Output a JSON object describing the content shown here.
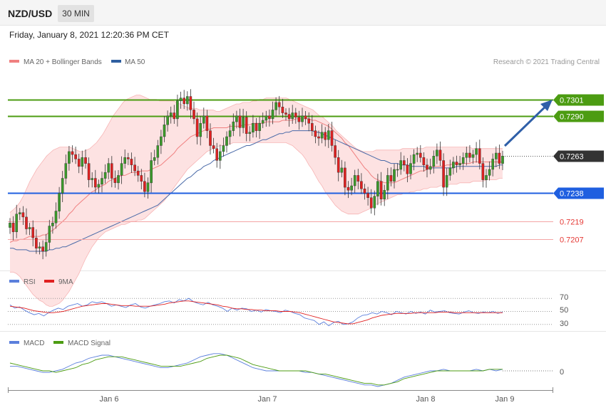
{
  "header": {
    "symbol": "NZD/USD",
    "timeframe": "30 MIN",
    "datetime": "Friday, January 8, 2021 12:20:36 PM CET"
  },
  "chart_data": [
    {
      "type": "candlestick",
      "legend": [
        {
          "name": "MA 20 + Bollinger Bands",
          "color": "#f08080"
        },
        {
          "name": "MA 50",
          "color": "#2f5fa0"
        }
      ],
      "credit": "Research © 2021 Trading Central",
      "ylim": [
        0.7188,
        0.732
      ],
      "x_ticks": [
        "Jan 6",
        "Jan 7",
        "Jan 8",
        "Jan 9"
      ],
      "price_lines": [
        {
          "value": 0.7301,
          "label": "0.7301",
          "color": "#4c9c12"
        },
        {
          "value": 0.729,
          "label": "0.7290",
          "color": "#4c9c12"
        },
        {
          "value": 0.7263,
          "label": "0.7263",
          "color": "#333333"
        },
        {
          "value": 0.7238,
          "label": "0.7238",
          "color": "#1f5fe0"
        },
        {
          "value": 0.7219,
          "label": "0.7219",
          "color": "#e53935"
        },
        {
          "value": 0.7207,
          "label": "0.7207",
          "color": "#e53935"
        }
      ],
      "close": [
        0.7218,
        0.7212,
        0.7224,
        0.7225,
        0.7222,
        0.7214,
        0.7215,
        0.7208,
        0.7201,
        0.7202,
        0.7199,
        0.7205,
        0.7216,
        0.7218,
        0.7226,
        0.7238,
        0.7248,
        0.7258,
        0.7266,
        0.7264,
        0.7261,
        0.7256,
        0.7262,
        0.7258,
        0.7247,
        0.7248,
        0.7242,
        0.7244,
        0.7248,
        0.7252,
        0.7258,
        0.7248,
        0.7245,
        0.725,
        0.7258,
        0.7262,
        0.7261,
        0.7257,
        0.7253,
        0.725,
        0.7246,
        0.7239,
        0.7245,
        0.726,
        0.7262,
        0.727,
        0.7276,
        0.7284,
        0.729,
        0.7292,
        0.7288,
        0.73,
        0.7302,
        0.7298,
        0.7303,
        0.7294,
        0.7288,
        0.7276,
        0.7285,
        0.729,
        0.728,
        0.727,
        0.7268,
        0.726,
        0.7266,
        0.727,
        0.7276,
        0.728,
        0.7286,
        0.729,
        0.7282,
        0.7289,
        0.7278,
        0.7279,
        0.7285,
        0.728,
        0.7285,
        0.7287,
        0.729,
        0.7288,
        0.7294,
        0.7299,
        0.7296,
        0.7292,
        0.7291,
        0.7288,
        0.7292,
        0.7289,
        0.7286,
        0.729,
        0.7288,
        0.7285,
        0.728,
        0.7276,
        0.7275,
        0.7279,
        0.7274,
        0.728,
        0.727,
        0.7262,
        0.7252,
        0.7255,
        0.7242,
        0.724,
        0.7243,
        0.725,
        0.7246,
        0.7241,
        0.7238,
        0.7235,
        0.7228,
        0.7236,
        0.7246,
        0.7234,
        0.724,
        0.725,
        0.7246,
        0.7254,
        0.7254,
        0.726,
        0.7257,
        0.7251,
        0.7258,
        0.7264,
        0.7265,
        0.7262,
        0.7257,
        0.7254,
        0.7256,
        0.7263,
        0.7267,
        0.726,
        0.7242,
        0.725,
        0.7255,
        0.7259,
        0.7257,
        0.7258,
        0.7262,
        0.7265,
        0.7262,
        0.7264,
        0.7268,
        0.7258,
        0.7247,
        0.725,
        0.7254,
        0.7261,
        0.7265,
        0.7258,
        0.7263
      ],
      "ma20": [
        0.7205,
        0.7206,
        0.7206,
        0.7207,
        0.7207,
        0.7208,
        0.7209,
        0.7209,
        0.7209,
        0.7209,
        0.721,
        0.721,
        0.7212,
        0.7213,
        0.7215,
        0.7217,
        0.7219,
        0.7221,
        0.7224,
        0.7226,
        0.7229,
        0.7231,
        0.7233,
        0.7235,
        0.7237,
        0.7239,
        0.724,
        0.7242,
        0.7243,
        0.7244,
        0.7246,
        0.7247,
        0.7248,
        0.7249,
        0.725,
        0.725,
        0.7251,
        0.7252,
        0.7252,
        0.7252,
        0.7253,
        0.7253,
        0.7253,
        0.7254,
        0.7255,
        0.7256,
        0.7257,
        0.7259,
        0.7261,
        0.7263,
        0.7265,
        0.7268,
        0.727,
        0.7272,
        0.7274,
        0.7276,
        0.7277,
        0.7278,
        0.7279,
        0.728,
        0.7281,
        0.7281,
        0.7282,
        0.7282,
        0.7282,
        0.7282,
        0.7282,
        0.7283,
        0.7283,
        0.7283,
        0.7283,
        0.7284,
        0.7284,
        0.7284,
        0.7285,
        0.7285,
        0.7285,
        0.7285,
        0.7286,
        0.7286,
        0.7286,
        0.7286,
        0.7286,
        0.7287,
        0.7287,
        0.7287,
        0.7287,
        0.7288,
        0.7288,
        0.7288,
        0.7288,
        0.7288,
        0.7287,
        0.7287,
        0.7286,
        0.7285,
        0.7284,
        0.7283,
        0.7281,
        0.7279,
        0.7277,
        0.7275,
        0.7272,
        0.727,
        0.7267,
        0.7264,
        0.7261,
        0.7258,
        0.7255,
        0.7253,
        0.725,
        0.7248,
        0.7247,
        0.7246,
        0.7245,
        0.7245,
        0.7245,
        0.7245,
        0.7246,
        0.7247,
        0.7248,
        0.7249,
        0.725,
        0.7251,
        0.7252,
        0.7253,
        0.7253,
        0.7254,
        0.7255,
        0.7256,
        0.7256,
        0.7256,
        0.7256,
        0.7257,
        0.7257,
        0.7258,
        0.7258,
        0.7258,
        0.7258,
        0.7258,
        0.7258,
        0.7259,
        0.7259,
        0.7259,
        0.7259,
        0.7259,
        0.7259,
        0.7259,
        0.7259,
        0.7259,
        0.7259
      ],
      "bb_upper": [
        0.7225,
        0.7227,
        0.7229,
        0.7232,
        0.7236,
        0.7241,
        0.7246,
        0.725,
        0.7254,
        0.7257,
        0.726,
        0.7263,
        0.7265,
        0.7267,
        0.7268,
        0.7269,
        0.7269,
        0.7269,
        0.7269,
        0.7268,
        0.7267,
        0.7266,
        0.7266,
        0.7267,
        0.7268,
        0.727,
        0.7272,
        0.7275,
        0.7278,
        0.7282,
        0.7286,
        0.729,
        0.7293,
        0.7296,
        0.7299,
        0.7301,
        0.7302,
        0.7303,
        0.7304,
        0.7304,
        0.7303,
        0.7302,
        0.7301,
        0.7301,
        0.7301,
        0.73,
        0.73,
        0.73,
        0.73,
        0.73,
        0.7299,
        0.7298,
        0.7297,
        0.7296,
        0.7295,
        0.7295,
        0.7295,
        0.7294,
        0.7294,
        0.7294,
        0.7294,
        0.7294,
        0.7293,
        0.7293,
        0.7294,
        0.7295,
        0.7296,
        0.7297,
        0.7298,
        0.7298,
        0.7299,
        0.7299,
        0.7299,
        0.73,
        0.73,
        0.7301,
        0.7301,
        0.7302,
        0.7302,
        0.7302,
        0.7302,
        0.7302,
        0.7302,
        0.7302,
        0.7301,
        0.73,
        0.7299,
        0.7298,
        0.7297,
        0.7296,
        0.7295,
        0.7294,
        0.7292,
        0.729,
        0.7289,
        0.7287,
        0.7285,
        0.7283,
        0.728,
        0.7278,
        0.7276,
        0.7274,
        0.7272,
        0.727,
        0.7268,
        0.7267,
        0.7266,
        0.7266,
        0.7266,
        0.7266,
        0.7267,
        0.7267,
        0.7267,
        0.7267,
        0.7267,
        0.7267,
        0.7267,
        0.7267,
        0.7268,
        0.7268,
        0.7268,
        0.7268,
        0.7268,
        0.7268,
        0.7268,
        0.7269,
        0.7269,
        0.7269,
        0.7269,
        0.7269,
        0.7269,
        0.7269,
        0.7269,
        0.7269,
        0.7269,
        0.7269,
        0.7269,
        0.7269,
        0.7269,
        0.7268,
        0.7268,
        0.7268,
        0.7268,
        0.7268,
        0.7268,
        0.7268,
        0.7268,
        0.7268,
        0.7268
      ],
      "bb_lower": [
        0.7185,
        0.7185,
        0.7184,
        0.7182,
        0.7179,
        0.7176,
        0.7173,
        0.717,
        0.7168,
        0.7166,
        0.7165,
        0.7163,
        0.7162,
        0.7162,
        0.7163,
        0.7164,
        0.7166,
        0.7169,
        0.7172,
        0.7176,
        0.718,
        0.7184,
        0.7189,
        0.7194,
        0.7198,
        0.7202,
        0.7205,
        0.7208,
        0.721,
        0.7212,
        0.7213,
        0.7214,
        0.7215,
        0.7216,
        0.7217,
        0.7217,
        0.7218,
        0.7219,
        0.7219,
        0.722,
        0.722,
        0.7221,
        0.7223,
        0.7225,
        0.7227,
        0.7229,
        0.7231,
        0.7233,
        0.7236,
        0.7239,
        0.7242,
        0.7245,
        0.7248,
        0.7251,
        0.7254,
        0.7256,
        0.7258,
        0.726,
        0.7262,
        0.7264,
        0.7266,
        0.7267,
        0.7268,
        0.7269,
        0.727,
        0.727,
        0.7271,
        0.7271,
        0.7272,
        0.7272,
        0.7272,
        0.7272,
        0.7272,
        0.7272,
        0.7272,
        0.7272,
        0.7272,
        0.7272,
        0.7272,
        0.7272,
        0.7272,
        0.7272,
        0.7272,
        0.7272,
        0.7272,
        0.7271,
        0.727,
        0.7268,
        0.7266,
        0.7264,
        0.7261,
        0.7257,
        0.7254,
        0.725,
        0.7246,
        0.7243,
        0.7239,
        0.7236,
        0.7233,
        0.723,
        0.7228,
        0.7226,
        0.7225,
        0.7224,
        0.7224,
        0.7224,
        0.7224,
        0.7225,
        0.7226,
        0.7227,
        0.7228,
        0.723,
        0.7231,
        0.7232,
        0.7233,
        0.7234,
        0.7235,
        0.7236,
        0.7237,
        0.7237,
        0.7238,
        0.7238,
        0.7239,
        0.7239,
        0.724,
        0.724,
        0.7241,
        0.7241,
        0.7242,
        0.7242,
        0.7242,
        0.7243,
        0.7243,
        0.7243,
        0.7244,
        0.7244,
        0.7244,
        0.7245,
        0.7245,
        0.7245,
        0.7245,
        0.7246,
        0.7246,
        0.7246,
        0.7246,
        0.7247,
        0.7247,
        0.7247,
        0.7247,
        0.7248,
        0.7248
      ],
      "ma50": [
        0.7201,
        0.7201,
        0.72,
        0.72,
        0.72,
        0.72,
        0.7199,
        0.7199,
        0.7199,
        0.7199,
        0.7199,
        0.7199,
        0.72,
        0.72,
        0.7201,
        0.7201,
        0.7202,
        0.7202,
        0.7203,
        0.7204,
        0.7205,
        0.7206,
        0.7207,
        0.7208,
        0.7209,
        0.721,
        0.7211,
        0.7212,
        0.7213,
        0.7214,
        0.7215,
        0.7216,
        0.7217,
        0.7218,
        0.7219,
        0.722,
        0.7221,
        0.7222,
        0.7223,
        0.7224,
        0.7225,
        0.7226,
        0.7227,
        0.7228,
        0.7229,
        0.723,
        0.7232,
        0.7234,
        0.7236,
        0.7238,
        0.724,
        0.7242,
        0.7244,
        0.7246,
        0.7248,
        0.7249,
        0.7251,
        0.7253,
        0.7254,
        0.7256,
        0.7257,
        0.7258,
        0.726,
        0.7261,
        0.7262,
        0.7263,
        0.7264,
        0.7265,
        0.7266,
        0.7267,
        0.7268,
        0.7269,
        0.727,
        0.727,
        0.7271,
        0.7272,
        0.7273,
        0.7274,
        0.7274,
        0.7275,
        0.7276,
        0.7277,
        0.7278,
        0.7278,
        0.7279,
        0.7279,
        0.728,
        0.728,
        0.728,
        0.728,
        0.728,
        0.728,
        0.728,
        0.7279,
        0.7279,
        0.7278,
        0.7277,
        0.7276,
        0.7275,
        0.7274,
        0.7273,
        0.7272,
        0.7271,
        0.727,
        0.7269,
        0.7268,
        0.7267,
        0.7266,
        0.7265,
        0.7264,
        0.7263,
        0.7262,
        0.7261,
        0.726,
        0.726,
        0.7259,
        0.7258,
        0.7258,
        0.7258,
        0.7257,
        0.7257,
        0.7257,
        0.7256,
        0.7256,
        0.7256,
        0.7256,
        0.7256,
        0.7255,
        0.7255,
        0.7255,
        0.7255,
        0.7255,
        0.7255,
        0.7255,
        0.7255,
        0.7255,
        0.7256,
        0.7256,
        0.7256,
        0.7256,
        0.7256,
        0.7256,
        0.7256,
        0.7256,
        0.7256,
        0.7256,
        0.7256,
        0.7256,
        0.7256,
        0.7257,
        0.7257
      ]
    },
    {
      "type": "line",
      "legend": [
        {
          "name": "RSI",
          "color": "#5b7fdc"
        },
        {
          "name": "9MA",
          "color": "#e02020"
        }
      ],
      "ylim": [
        20,
        80
      ],
      "y_ticks": [
        "70",
        "50",
        "30"
      ],
      "reference_levels": [
        70,
        50,
        30
      ],
      "rsi": [
        60,
        55,
        57,
        52,
        48,
        45,
        47,
        43,
        48,
        52,
        55,
        53,
        58,
        60,
        62,
        58,
        60,
        65,
        63,
        65,
        62,
        58,
        60,
        58,
        56,
        60,
        62,
        57,
        55,
        58,
        60,
        62,
        65,
        66,
        63,
        68,
        66,
        70,
        65,
        62,
        60,
        64,
        60,
        58,
        55,
        50,
        55,
        52,
        55,
        54,
        50,
        52,
        49,
        53,
        51,
        50,
        48,
        52,
        50,
        47,
        45,
        40,
        38,
        36,
        30,
        34,
        28,
        33,
        35,
        30,
        31,
        34,
        40,
        44,
        45,
        48,
        46,
        50,
        48,
        45,
        50,
        48,
        46,
        50,
        47,
        49,
        46,
        52,
        49,
        50,
        51,
        48,
        47,
        46,
        49,
        51,
        48,
        47,
        49,
        48,
        50,
        47,
        49
      ],
      "ma9": [
        58,
        57,
        56,
        55,
        53,
        51,
        50,
        49,
        48,
        48,
        49,
        50,
        52,
        54,
        56,
        58,
        59,
        60,
        61,
        62,
        62,
        61,
        60,
        59,
        59,
        59,
        58,
        58,
        58,
        58,
        59,
        60,
        61,
        63,
        64,
        65,
        66,
        66,
        65,
        64,
        63,
        62,
        61,
        60,
        58,
        57,
        55,
        54,
        54,
        53,
        53,
        52,
        52,
        51,
        51,
        51,
        50,
        50,
        50,
        49,
        48,
        46,
        44,
        42,
        40,
        38,
        36,
        34,
        33,
        32,
        31,
        31,
        33,
        35,
        37,
        40,
        42,
        44,
        45,
        46,
        47,
        47,
        47,
        47,
        48,
        48,
        48,
        48,
        48,
        49,
        49,
        49,
        48,
        48,
        48,
        48,
        48,
        48,
        48,
        48,
        48,
        48,
        48
      ]
    },
    {
      "type": "line",
      "legend": [
        {
          "name": "MACD",
          "color": "#5b7fdc"
        },
        {
          "name": "MACD Signal",
          "color": "#4c9c12"
        }
      ],
      "ylim": [
        -0.0015,
        0.0015
      ],
      "y_ticks": [
        "0"
      ],
      "reference_levels": [
        0
      ],
      "macd": [
        0.0003,
        0.0003,
        0.0002,
        0.0001,
        -0.0,
        -0.0001,
        -0.0001,
        -0.0,
        0.0001,
        0.0003,
        0.0005,
        0.0006,
        0.0008,
        0.0009,
        0.001,
        0.001,
        0.0009,
        0.0008,
        0.0007,
        0.0006,
        0.0005,
        0.0004,
        0.0003,
        0.0002,
        0.0002,
        0.0003,
        0.0004,
        0.0005,
        0.0007,
        0.0009,
        0.001,
        0.0011,
        0.0011,
        0.001,
        0.0008,
        0.0006,
        0.0004,
        0.0002,
        0.0001,
        0.0,
        -0.0,
        0.0,
        0.0,
        -0.0,
        -0.0,
        -0.0001,
        -0.0001,
        -0.0002,
        -0.0003,
        -0.0004,
        -0.0005,
        -0.0006,
        -0.0007,
        -0.0008,
        -0.0009,
        -0.0009,
        -0.001,
        -0.0009,
        -0.0008,
        -0.0006,
        -0.0004,
        -0.0003,
        -0.0002,
        -0.0001,
        -0.0,
        0.0,
        0.0001,
        0.0,
        -0.0,
        0.0,
        0.0,
        0.0001,
        0.0,
        0.0001,
        0.0,
        0.0001
      ],
      "signal": [
        0.0005,
        0.0004,
        0.0003,
        0.0002,
        0.0001,
        0.0,
        -0.0,
        -0.0001,
        -0.0,
        0.0001,
        0.0002,
        0.0004,
        0.0005,
        0.0007,
        0.0008,
        0.0009,
        0.0009,
        0.0009,
        0.0008,
        0.0007,
        0.0006,
        0.0005,
        0.0004,
        0.0003,
        0.0003,
        0.0003,
        0.0003,
        0.0004,
        0.0005,
        0.0006,
        0.0008,
        0.0009,
        0.001,
        0.001,
        0.0009,
        0.0008,
        0.0006,
        0.0004,
        0.0003,
        0.0002,
        0.0001,
        0.0,
        0.0,
        0.0,
        -0.0,
        -0.0,
        -0.0001,
        -0.0002,
        -0.0002,
        -0.0003,
        -0.0004,
        -0.0005,
        -0.0006,
        -0.0007,
        -0.0008,
        -0.0008,
        -0.0009,
        -0.0009,
        -0.0008,
        -0.0007,
        -0.0005,
        -0.0004,
        -0.0003,
        -0.0002,
        -0.0001,
        -0.0,
        0.0,
        0.0,
        0.0,
        0.0,
        0.0,
        0.0,
        0.0,
        0.0001,
        0.0001,
        0.0001
      ]
    }
  ]
}
